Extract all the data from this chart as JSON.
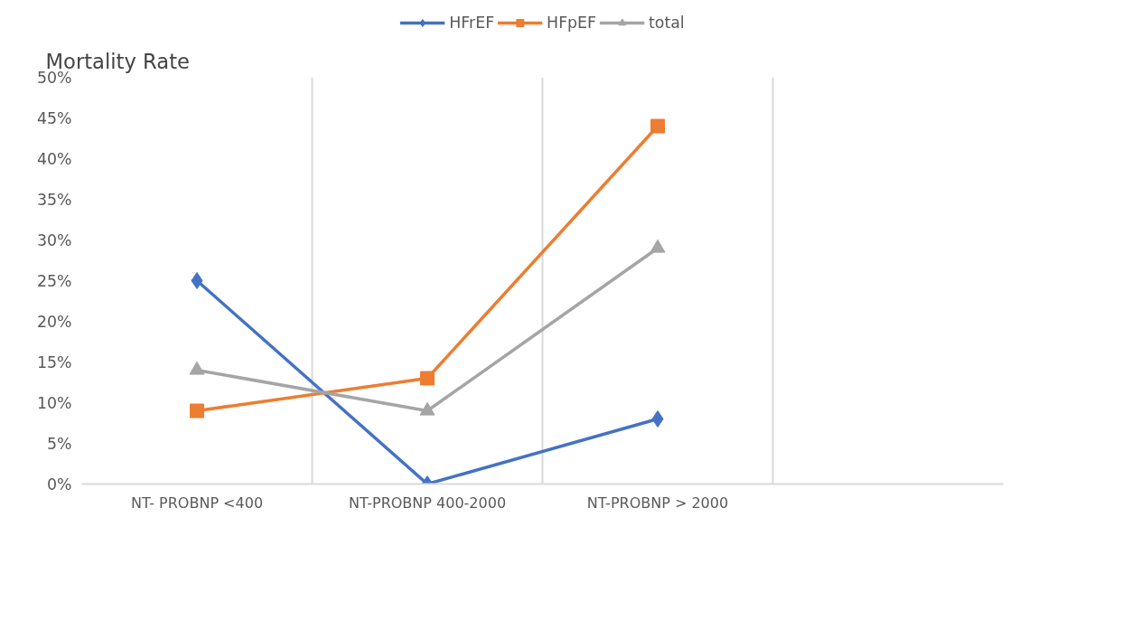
{
  "chart_data": {
    "type": "line",
    "ylabel": "Mortality Rate",
    "categories": [
      "NT- PROBNP <400",
      "NT-PROBNP 400-2000",
      "NT-PROBNP > 2000",
      null
    ],
    "series": [
      {
        "name": "HFrEF",
        "color": "#4472c4",
        "marker": "diamond",
        "values": [
          25,
          0,
          8,
          null
        ]
      },
      {
        "name": "HFpEF",
        "color": "#ed7d31",
        "marker": "square",
        "values": [
          9,
          13,
          44,
          null
        ]
      },
      {
        "name": "total",
        "color": "#a5a5a5",
        "marker": "triangle",
        "values": [
          14,
          9,
          29,
          null
        ]
      }
    ],
    "ylim": [
      0,
      50
    ],
    "yticks": [
      {
        "value": 0,
        "label": "0%"
      },
      {
        "value": 5,
        "label": "5%"
      },
      {
        "value": 10,
        "label": "10%"
      },
      {
        "value": 15,
        "label": "15%"
      },
      {
        "value": 20,
        "label": "20%"
      },
      {
        "value": 25,
        "label": "25%"
      },
      {
        "value": 30,
        "label": "30%"
      },
      {
        "value": 35,
        "label": "35%"
      },
      {
        "value": 40,
        "label": "40%"
      },
      {
        "value": 45,
        "label": "45%"
      },
      {
        "value": 50,
        "label": "50%"
      }
    ],
    "grid": "x",
    "legend": "top",
    "line_style": "solid"
  }
}
